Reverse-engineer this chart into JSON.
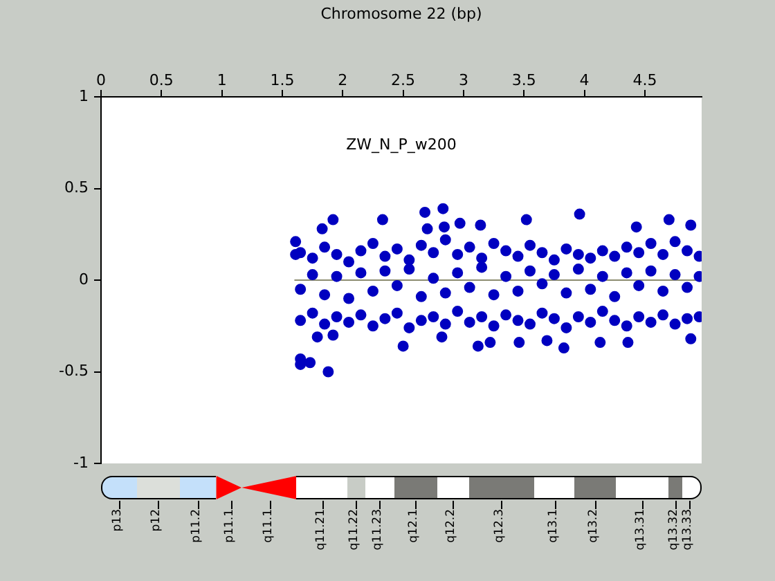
{
  "chart_data": {
    "type": "scatter",
    "title": "ZW_N_P_w200",
    "xlabel": "Chromosome 22 (bp)",
    "xlim": [
      0,
      4.97
    ],
    "xticks": [
      0,
      0.5,
      1,
      1.5,
      2,
      2.5,
      3,
      3.5,
      4,
      4.5
    ],
    "ylim": [
      -1,
      1
    ],
    "yticks": [
      -1,
      -0.5,
      0,
      0.5,
      1
    ],
    "grid": false,
    "legend": false,
    "series": [
      {
        "marker": "circle",
        "color": "#0000c0",
        "x": [
          1.65,
          1.65,
          1.65,
          1.75,
          1.75,
          1.75,
          1.85,
          1.85,
          1.85,
          1.95,
          1.95,
          1.95,
          2.05,
          2.05,
          2.05,
          2.15,
          2.15,
          2.15,
          2.25,
          2.25,
          2.25,
          2.35,
          2.35,
          2.35,
          2.45,
          2.45,
          2.45,
          2.55,
          2.55,
          2.55,
          2.65,
          2.65,
          2.65,
          2.75,
          2.75,
          2.75,
          2.85,
          2.85,
          2.85,
          2.95,
          2.95,
          2.95,
          3.05,
          3.05,
          3.05,
          3.15,
          3.15,
          3.15,
          3.25,
          3.25,
          3.25,
          3.35,
          3.35,
          3.35,
          3.45,
          3.45,
          3.45,
          3.55,
          3.55,
          3.55,
          3.65,
          3.65,
          3.65,
          3.75,
          3.75,
          3.75,
          3.85,
          3.85,
          3.85,
          3.95,
          3.95,
          3.95,
          4.05,
          4.05,
          4.05,
          4.15,
          4.15,
          4.15,
          4.25,
          4.25,
          4.25,
          4.35,
          4.35,
          4.35,
          4.45,
          4.45,
          4.45,
          4.55,
          4.55,
          4.55,
          4.65,
          4.65,
          4.65,
          4.75,
          4.75,
          4.75,
          4.85,
          4.85,
          4.85,
          4.95,
          4.95,
          4.95,
          1.61,
          1.61,
          1.83,
          1.92,
          2.33,
          2.68,
          2.83,
          2.97,
          3.14,
          3.52,
          3.96,
          4.43,
          4.7,
          4.88,
          2.7,
          2.84,
          1.65,
          1.65,
          1.73,
          1.88,
          1.79,
          2.5,
          3.12,
          3.22,
          3.83,
          3.46,
          4.13,
          4.36,
          1.92,
          2.82,
          3.69,
          4.88
        ],
        "values": [
          0.15,
          -0.05,
          -0.22,
          0.12,
          0.03,
          -0.18,
          0.18,
          -0.08,
          -0.24,
          0.14,
          0.02,
          -0.2,
          0.1,
          -0.1,
          -0.23,
          0.16,
          0.04,
          -0.19,
          0.2,
          -0.06,
          -0.25,
          0.13,
          0.05,
          -0.21,
          0.17,
          -0.03,
          -0.18,
          0.11,
          0.06,
          -0.26,
          0.19,
          -0.09,
          -0.22,
          0.15,
          0.01,
          -0.2,
          0.22,
          -0.07,
          -0.24,
          0.14,
          0.04,
          -0.17,
          0.18,
          -0.04,
          -0.23,
          0.12,
          0.07,
          -0.2,
          0.2,
          -0.08,
          -0.25,
          0.16,
          0.02,
          -0.19,
          0.13,
          -0.06,
          -0.22,
          0.19,
          0.05,
          -0.24,
          0.15,
          -0.02,
          -0.18,
          0.11,
          0.03,
          -0.21,
          0.17,
          -0.07,
          -0.26,
          0.14,
          0.06,
          -0.2,
          0.12,
          -0.05,
          -0.23,
          0.16,
          0.02,
          -0.17,
          0.13,
          -0.09,
          -0.22,
          0.18,
          0.04,
          -0.25,
          0.15,
          -0.03,
          -0.2,
          0.2,
          0.05,
          -0.23,
          0.14,
          -0.06,
          -0.19,
          0.21,
          0.03,
          -0.24,
          0.16,
          -0.04,
          -0.21,
          0.13,
          0.02,
          -0.2,
          0.21,
          0.14,
          0.28,
          0.33,
          0.33,
          0.37,
          0.39,
          0.31,
          0.3,
          0.33,
          0.36,
          0.29,
          0.33,
          0.3,
          0.28,
          0.29,
          -0.43,
          -0.46,
          -0.45,
          -0.5,
          -0.31,
          -0.36,
          -0.36,
          -0.34,
          -0.37,
          -0.34,
          -0.34,
          -0.34,
          -0.3,
          -0.31,
          -0.33,
          -0.32
        ]
      },
      {
        "type": "line",
        "color": "#8c8c70",
        "x": [
          1.6,
          4.97
        ],
        "values": [
          0,
          0
        ]
      }
    ],
    "annotations": [
      "p13",
      "p12",
      "p11.2",
      "p11.1",
      "q11.1",
      "q11.21",
      "q11.22",
      "q11.23",
      "q12.1",
      "q12.2",
      "q12.3",
      "q13.1",
      "q13.2",
      "q13.31",
      "q13.32",
      "q13.33"
    ]
  }
}
